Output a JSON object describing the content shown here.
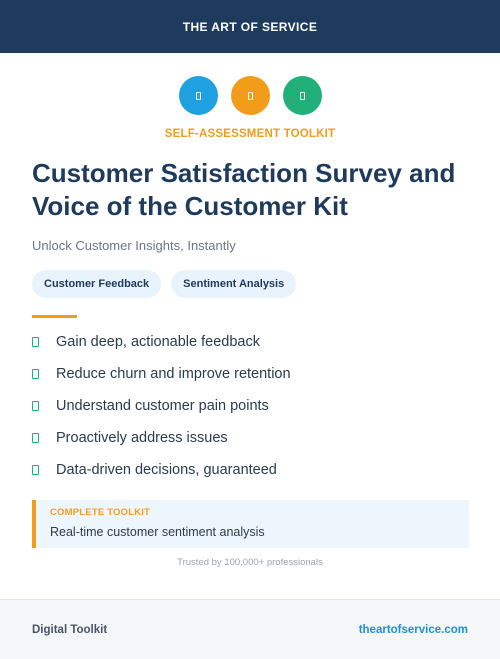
{
  "header": {
    "brand": "THE ART OF SERVICE",
    "bg_color": "#1e3a5c"
  },
  "icons": [
    {
      "name": "document-icon",
      "color": "#1fa0e0"
    },
    {
      "name": "document-icon",
      "color": "#f29d1a"
    },
    {
      "name": "document-icon",
      "color": "#22b07a"
    }
  ],
  "eyebrow": "SELF-ASSESSMENT TOOLKIT",
  "title": "Customer Satisfaction Survey and Voice of the Customer Kit",
  "subtitle": "Unlock Customer Insights, Instantly",
  "tags": [
    "Customer Feedback",
    "Sentiment Analysis"
  ],
  "features": [
    "Gain deep, actionable feedback",
    "Reduce churn and improve retention",
    "Understand customer pain points",
    "Proactively address issues",
    "Data-driven decisions, guaranteed"
  ],
  "callout": {
    "label": "COMPLETE TOOLKIT",
    "text": "Real-time customer sentiment analysis"
  },
  "trusted": "Trusted by 100,000+ professionals",
  "footer": {
    "left": "Digital Toolkit",
    "right": "theartofservice.com"
  },
  "accent_color": "#f29d1a"
}
